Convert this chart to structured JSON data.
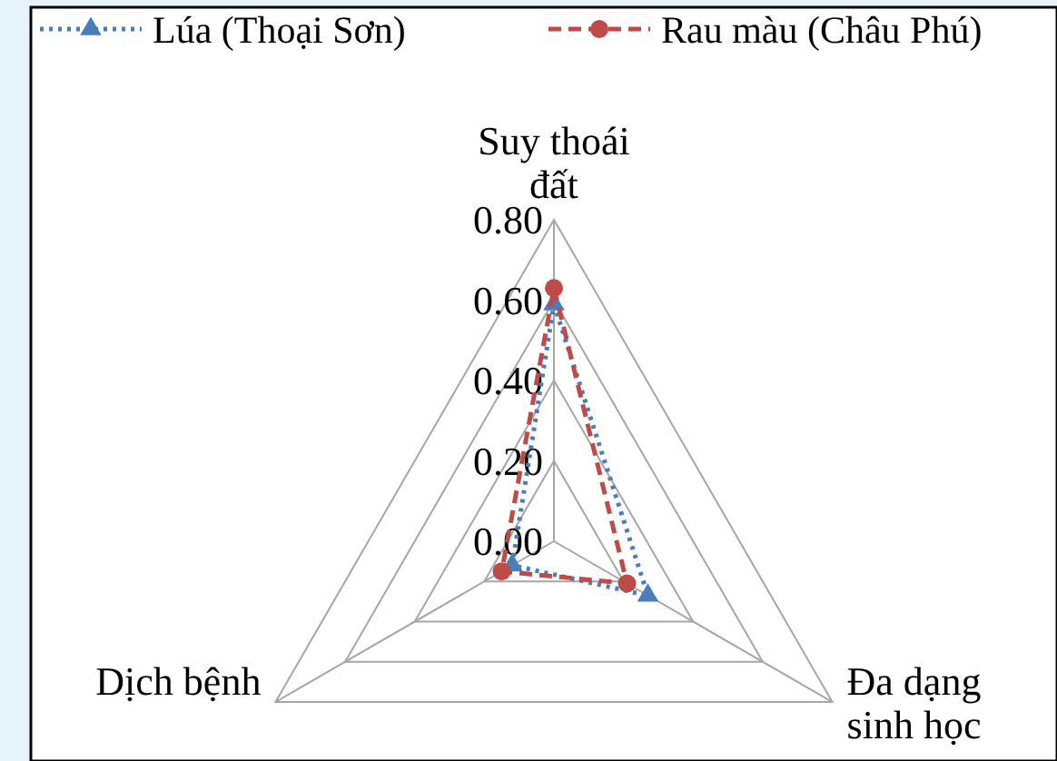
{
  "chart_data": {
    "type": "radar",
    "categories": [
      "Suy thoái đất",
      "Đa dạng sinh học",
      "Dịch bệnh"
    ],
    "ylim": [
      0,
      0.8
    ],
    "yticks": [
      {
        "value": 0,
        "label": "0.00"
      },
      {
        "value": 0.2,
        "label": "0.20"
      },
      {
        "value": 0.4,
        "label": "0.40"
      },
      {
        "value": 0.6,
        "label": "0.60"
      },
      {
        "value": 0.8,
        "label": "0.80"
      }
    ],
    "grid": true,
    "legend": "top",
    "series": [
      {
        "name": "Lúa (Thoại Sơn)",
        "color": "#4a7ebb",
        "values": [
          0.59,
          0.27,
          0.12
        ],
        "marker": "triangle",
        "line_style": "dotted"
      },
      {
        "name": "Rau màu (Châu Phú)",
        "color": "#be4b48",
        "values": [
          0.63,
          0.21,
          0.15
        ],
        "marker": "circle",
        "line_style": "dashed"
      }
    ]
  }
}
